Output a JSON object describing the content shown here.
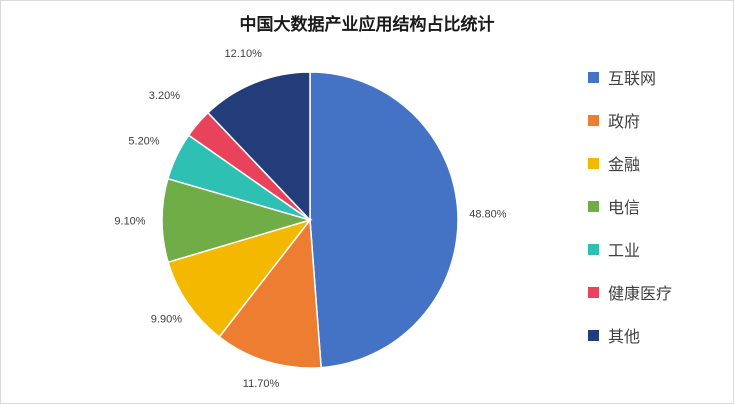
{
  "chart_data": {
    "type": "pie",
    "title": "中国大数据产业应用结构占比统计",
    "categories": [
      "互联网",
      "政府",
      "金融",
      "电信",
      "工业",
      "健康医疗",
      "其他"
    ],
    "values": [
      48.8,
      11.7,
      9.9,
      9.1,
      5.2,
      3.2,
      12.1
    ],
    "value_labels": [
      "48.80%",
      "11.70%",
      "9.90%",
      "9.10%",
      "5.20%",
      "3.20%",
      "12.10%"
    ],
    "colors": [
      "#4472c4",
      "#ed7d31",
      "#f4b800",
      "#70ad47",
      "#2fc0b4",
      "#e8435a",
      "#233c7a"
    ],
    "start_angle": "top",
    "direction": "clockwise",
    "legend_position": "right"
  }
}
